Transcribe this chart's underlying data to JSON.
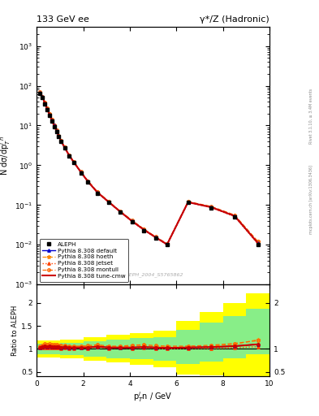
{
  "title_left": "133 GeV ee",
  "title_right": "γ*/Z (Hadronic)",
  "watermark": "ALEPH_2004_S5765862",
  "right_label_top": "Rivet 3.1.10, ≥ 3.4M events",
  "right_label_bot": "mcplots.cern.ch [arXiv:1306.3436]",
  "ylabel_main": "N dσ/dpᴵₙ",
  "ylabel_ratio": "Ratio to ALEPH",
  "xlabel": "pᴵₙn / GeV",
  "xlim": [
    0,
    10
  ],
  "ylim_main": [
    0.001,
    3000
  ],
  "ylim_ratio": [
    0.4,
    2.4
  ],
  "data_x": [
    0.15,
    0.25,
    0.35,
    0.45,
    0.55,
    0.65,
    0.75,
    0.85,
    0.95,
    1.05,
    1.2,
    1.4,
    1.6,
    1.9,
    2.2,
    2.6,
    3.1,
    3.6,
    4.1,
    4.6,
    5.1,
    5.6,
    6.5,
    7.5,
    8.5,
    9.5
  ],
  "data_y": [
    65,
    50,
    35,
    25,
    18,
    13,
    9.5,
    7.0,
    5.2,
    3.9,
    2.7,
    1.7,
    1.15,
    0.65,
    0.38,
    0.2,
    0.115,
    0.065,
    0.038,
    0.023,
    0.015,
    0.01,
    0.115,
    0.085,
    0.05,
    0.01
  ],
  "pythia_default_x": [
    0.15,
    0.25,
    0.35,
    0.45,
    0.55,
    0.65,
    0.75,
    0.85,
    0.95,
    1.05,
    1.2,
    1.4,
    1.6,
    1.9,
    2.2,
    2.6,
    3.1,
    3.6,
    4.1,
    4.6,
    5.1,
    5.6,
    6.5,
    7.5,
    8.5,
    9.5
  ],
  "pythia_default_y": [
    67,
    52,
    37,
    26,
    19,
    13.5,
    10,
    7.3,
    5.4,
    4.0,
    2.8,
    1.75,
    1.18,
    0.67,
    0.39,
    0.21,
    0.118,
    0.067,
    0.039,
    0.024,
    0.0155,
    0.0102,
    0.118,
    0.088,
    0.053,
    0.011
  ],
  "pythia_hoeth_x": [
    0.15,
    0.25,
    0.35,
    0.45,
    0.55,
    0.65,
    0.75,
    0.85,
    0.95,
    1.05,
    1.2,
    1.4,
    1.6,
    1.9,
    2.2,
    2.6,
    3.1,
    3.6,
    4.1,
    4.6,
    5.1,
    5.6,
    6.5,
    7.5,
    8.5,
    9.5
  ],
  "pythia_hoeth_y": [
    68,
    53,
    38,
    27,
    19.5,
    14,
    10.2,
    7.5,
    5.5,
    4.1,
    2.85,
    1.78,
    1.2,
    0.68,
    0.4,
    0.215,
    0.12,
    0.068,
    0.04,
    0.0245,
    0.0158,
    0.0104,
    0.12,
    0.09,
    0.055,
    0.012
  ],
  "pythia_jetset_x": [
    0.15,
    0.25,
    0.35,
    0.45,
    0.55,
    0.65,
    0.75,
    0.85,
    0.95,
    1.05,
    1.2,
    1.4,
    1.6,
    1.9,
    2.2,
    2.6,
    3.1,
    3.6,
    4.1,
    4.6,
    5.1,
    5.6,
    6.5,
    7.5,
    8.5,
    9.5
  ],
  "pythia_jetset_y": [
    66,
    51,
    36,
    25.5,
    18.5,
    13.3,
    9.8,
    7.2,
    5.3,
    3.95,
    2.75,
    1.72,
    1.16,
    0.66,
    0.385,
    0.207,
    0.116,
    0.066,
    0.0385,
    0.0235,
    0.0152,
    0.01,
    0.116,
    0.086,
    0.051,
    0.0105
  ],
  "pythia_montull_x": [
    0.15,
    0.25,
    0.35,
    0.45,
    0.55,
    0.65,
    0.75,
    0.85,
    0.95,
    1.05,
    1.2,
    1.4,
    1.6,
    1.9,
    2.2,
    2.6,
    3.1,
    3.6,
    4.1,
    4.6,
    5.1,
    5.6,
    6.5,
    7.5,
    8.5,
    9.5
  ],
  "pythia_montull_y": [
    69,
    54,
    39,
    27.5,
    20,
    14.2,
    10.4,
    7.6,
    5.6,
    4.2,
    2.9,
    1.8,
    1.22,
    0.69,
    0.405,
    0.218,
    0.122,
    0.069,
    0.041,
    0.025,
    0.016,
    0.0106,
    0.122,
    0.092,
    0.056,
    0.012
  ],
  "pythia_cmw_x": [
    0.15,
    0.25,
    0.35,
    0.45,
    0.55,
    0.65,
    0.75,
    0.85,
    0.95,
    1.05,
    1.2,
    1.4,
    1.6,
    1.9,
    2.2,
    2.6,
    3.1,
    3.6,
    4.1,
    4.6,
    5.1,
    5.6,
    6.5,
    7.5,
    8.5,
    9.5
  ],
  "pythia_cmw_y": [
    67,
    52,
    37,
    26,
    19,
    13.5,
    10,
    7.3,
    5.4,
    4.0,
    2.8,
    1.75,
    1.18,
    0.67,
    0.39,
    0.21,
    0.118,
    0.067,
    0.039,
    0.024,
    0.0155,
    0.0102,
    0.118,
    0.088,
    0.053,
    0.011
  ],
  "ratio_x": [
    0.15,
    0.25,
    0.35,
    0.45,
    0.55,
    0.65,
    0.75,
    0.85,
    0.95,
    1.05,
    1.2,
    1.4,
    1.6,
    1.9,
    2.2,
    2.6,
    3.1,
    3.6,
    4.1,
    4.6,
    5.1,
    5.6,
    6.5,
    7.5,
    8.5,
    9.5
  ],
  "ratio_default": [
    1.03,
    1.04,
    1.06,
    1.04,
    1.06,
    1.04,
    1.05,
    1.04,
    1.04,
    1.03,
    1.04,
    1.03,
    1.03,
    1.03,
    1.03,
    1.05,
    1.03,
    1.03,
    1.03,
    1.04,
    1.03,
    1.02,
    1.03,
    1.04,
    1.06,
    1.1
  ],
  "ratio_hoeth": [
    1.05,
    1.06,
    1.09,
    1.08,
    1.08,
    1.08,
    1.07,
    1.07,
    1.06,
    1.05,
    1.06,
    1.05,
    1.04,
    1.05,
    1.05,
    1.08,
    1.04,
    1.05,
    1.05,
    1.07,
    1.05,
    1.04,
    1.04,
    1.06,
    1.1,
    1.2
  ],
  "ratio_jetset": [
    1.02,
    1.02,
    1.03,
    1.02,
    1.03,
    1.02,
    1.03,
    1.03,
    1.02,
    1.01,
    1.02,
    1.01,
    1.01,
    1.02,
    1.01,
    1.04,
    1.01,
    1.02,
    1.01,
    1.02,
    1.01,
    1.0,
    1.01,
    1.01,
    1.02,
    1.05
  ],
  "ratio_montull": [
    1.06,
    1.08,
    1.11,
    1.1,
    1.11,
    1.09,
    1.09,
    1.09,
    1.08,
    1.08,
    1.08,
    1.06,
    1.06,
    1.06,
    1.07,
    1.09,
    1.06,
    1.06,
    1.08,
    1.09,
    1.07,
    1.06,
    1.06,
    1.08,
    1.12,
    1.18
  ],
  "ratio_cmw": [
    1.03,
    1.04,
    1.06,
    1.04,
    1.06,
    1.04,
    1.05,
    1.04,
    1.04,
    1.03,
    1.04,
    1.03,
    1.03,
    1.03,
    1.03,
    1.05,
    1.03,
    1.03,
    1.03,
    1.04,
    1.03,
    1.02,
    1.03,
    1.04,
    1.06,
    1.1
  ],
  "band_yellow_edges": [
    0,
    1,
    2,
    3,
    4,
    5,
    6,
    7,
    8,
    9,
    10
  ],
  "band_yellow_lo": [
    0.82,
    0.8,
    0.75,
    0.7,
    0.65,
    0.6,
    0.45,
    0.42,
    0.4,
    0.38,
    0.38
  ],
  "band_yellow_hi": [
    1.18,
    1.2,
    1.25,
    1.3,
    1.35,
    1.4,
    1.6,
    1.8,
    2.0,
    2.2,
    2.2
  ],
  "band_green_edges": [
    0,
    1,
    2,
    3,
    4,
    5,
    6,
    7,
    8,
    9,
    10
  ],
  "band_green_lo": [
    0.88,
    0.87,
    0.83,
    0.8,
    0.77,
    0.74,
    0.68,
    0.72,
    0.8,
    0.88,
    0.88
  ],
  "band_green_hi": [
    1.12,
    1.13,
    1.17,
    1.2,
    1.23,
    1.26,
    1.42,
    1.57,
    1.72,
    1.88,
    1.88
  ],
  "color_data": "#000000",
  "color_default": "#0000cc",
  "color_hoeth": "#ff8800",
  "color_jetset": "#ff4400",
  "color_montull": "#ff6600",
  "color_cmw": "#cc0000",
  "color_yellow": "#ffff00",
  "color_green": "#88ee88"
}
